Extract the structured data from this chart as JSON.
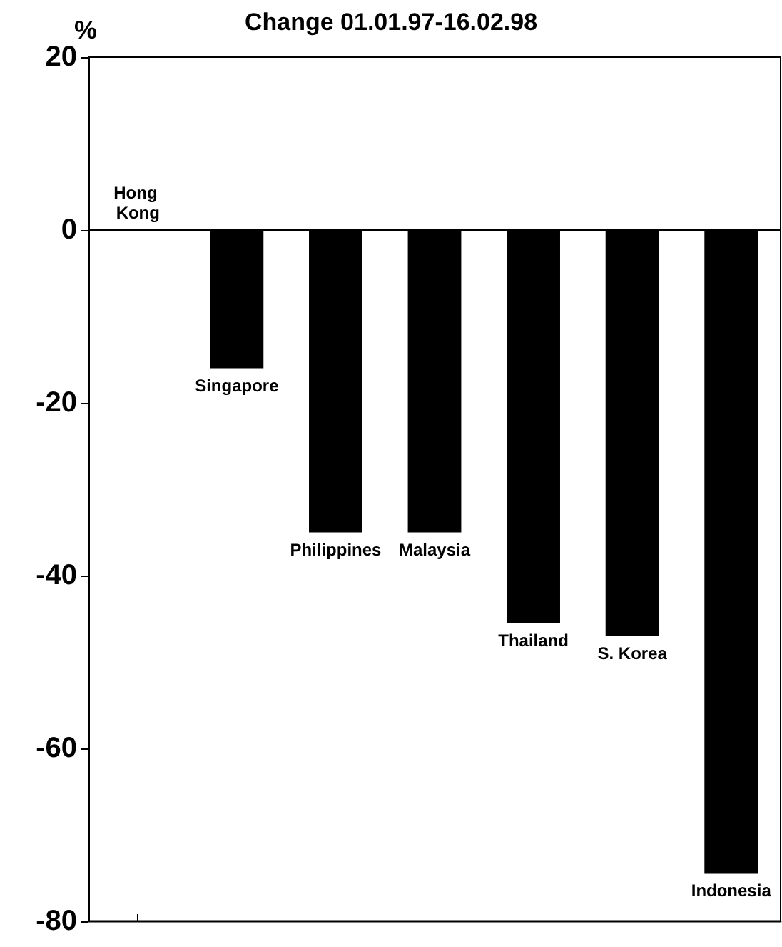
{
  "chart_data": {
    "type": "bar",
    "title": "Change 01.01.97-16.02.98",
    "ylabel": "%",
    "categories": [
      "Hong Kong",
      "Singapore",
      "Philippines",
      "Malaysia",
      "Thailand",
      "S. Korea",
      "Indonesia"
    ],
    "values": [
      0,
      -16,
      -35,
      -35,
      -45.5,
      -47,
      -74.5
    ],
    "color": "#000000",
    "ylim": [
      -80,
      20
    ],
    "yticks": [
      -80,
      -60,
      -40,
      -20,
      0,
      20
    ],
    "ref_lines": [
      {
        "axis": "y",
        "value": 0
      }
    ],
    "tick_labels": "y",
    "grid": false
  }
}
